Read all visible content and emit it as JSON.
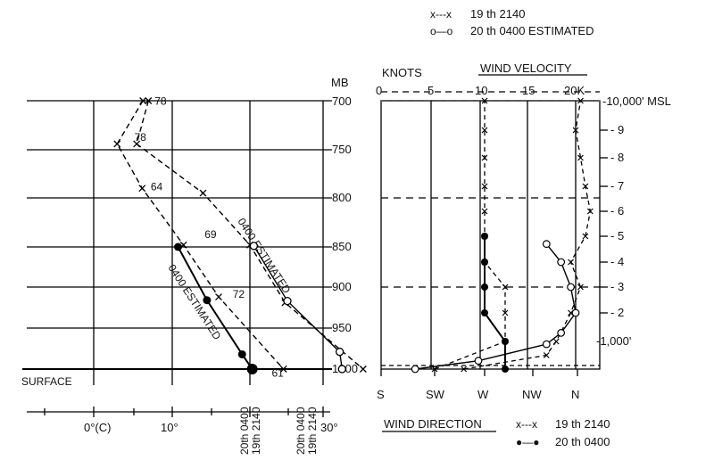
{
  "chart_data": [
    {
      "type": "line",
      "panel": "temperature-pressure",
      "y_unit": "MB",
      "y_ticks": [
        700,
        750,
        800,
        850,
        900,
        950,
        1000
      ],
      "x_ticks": [
        "0°(C)",
        "10°",
        "30°"
      ],
      "surface_label": "SURFACE",
      "estimated_label": "0400 ESTIMATED",
      "series": [
        {
          "name": "19 th 2140",
          "style": "dashed-x",
          "points": [
            {
              "p": 700,
              "t": 6.3
            },
            {
              "p": 700,
              "t": 7.0
            },
            {
              "p": 744,
              "t": 3.0
            },
            {
              "p": 744,
              "t": 5.5
            },
            {
              "p": 790,
              "t": 6.2
            },
            {
              "p": 795,
              "t": 14.0
            },
            {
              "p": 848,
              "t": 11.5
            },
            {
              "p": 848,
              "t": 20.0
            },
            {
              "p": 912,
              "t": 16.0
            },
            {
              "p": 919,
              "t": 24.5
            },
            {
              "p": 1000,
              "t": 24.3
            },
            {
              "p": 1000,
              "t": 34.5
            }
          ]
        },
        {
          "name": "20 th 0400 ESTIMATED",
          "style": "open-circle",
          "points": [
            {
              "p": 849,
              "t": 20.5
            },
            {
              "p": 917,
              "t": 24.8
            },
            {
              "p": 979,
              "t": 31.5
            },
            {
              "p": 1000,
              "t": 31.8
            }
          ]
        },
        {
          "name": "20 th 0400",
          "style": "filled-circle",
          "points": [
            {
              "p": 850,
              "t": 10.8
            },
            {
              "p": 916,
              "t": 14.5
            },
            {
              "p": 982,
              "t": 19.0
            },
            {
              "p": 1000,
              "t": 20.3
            }
          ]
        }
      ],
      "point_labels": [
        {
          "text": "78",
          "p": 704,
          "t": 7.8
        },
        {
          "text": "78",
          "p": 741,
          "t": 5.2
        },
        {
          "text": "64",
          "p": 792,
          "t": 7.3
        },
        {
          "text": "69",
          "p": 841,
          "t": 14.2
        },
        {
          "text": "72",
          "p": 913,
          "t": 17.8
        },
        {
          "text": "61",
          "p": 1009,
          "t": 22.8
        }
      ],
      "bottom_markers": [
        "20th 0400",
        "19th 2140",
        "20th 0400",
        "19th 2140"
      ]
    },
    {
      "type": "line",
      "panel": "wind-velocity",
      "title": "WIND VELOCITY",
      "x_unit": "KNOTS",
      "x_ticks": [
        "0",
        "5",
        "10",
        "15",
        "20K"
      ],
      "x_range": [
        0,
        20
      ],
      "altitude_ticks": [
        "-10,000' MSL",
        "- 9",
        "- 8",
        "- 7",
        "- 6",
        "- 5",
        "- 4",
        "- 3",
        "- 2",
        "-1,000'"
      ],
      "series": [
        {
          "name": "19 th 2140",
          "style": "dashed-x",
          "points": [
            {
              "alt": 0,
              "k": 8.5
            },
            {
              "alt": 0.5,
              "k": 17.0
            },
            {
              "alt": 1.0,
              "k": 18.0
            },
            {
              "alt": 2.0,
              "k": 19.5
            },
            {
              "alt": 3.0,
              "k": 20.5
            },
            {
              "alt": 4.0,
              "k": 19.5
            },
            {
              "alt": 5.0,
              "k": 21.0
            },
            {
              "alt": 6.0,
              "k": 21.5
            },
            {
              "alt": 7.0,
              "k": 21.0
            },
            {
              "alt": 8.0,
              "k": 20.5
            },
            {
              "alt": 9.0,
              "k": 20.0
            },
            {
              "alt": 10.0,
              "k": 20.5
            }
          ]
        },
        {
          "name": "20th 0400",
          "style": "open-circle",
          "points": [
            {
              "alt": 0,
              "k": 3.5
            },
            {
              "alt": 0.3,
              "k": 10.0
            },
            {
              "alt": 0.9,
              "k": 17.0
            },
            {
              "alt": 1.3,
              "k": 18.5
            },
            {
              "alt": 2.0,
              "k": 20.0
            },
            {
              "alt": 3.0,
              "k": 19.5
            },
            {
              "alt": 4.0,
              "k": 18.5
            },
            {
              "alt": 4.7,
              "k": 17.0
            }
          ]
        }
      ]
    },
    {
      "type": "line",
      "panel": "wind-direction",
      "title": "WIND DIRECTION",
      "x_ticks": [
        "S",
        "SW",
        "W",
        "NW",
        "N"
      ],
      "series": [
        {
          "name": "19 th 2140",
          "style": "dashed-x",
          "points": [
            {
              "alt": 0,
              "d": "SW"
            },
            {
              "alt": 1.0,
              "d": "W-NW"
            },
            {
              "alt": 2.0,
              "d": "W-NW"
            },
            {
              "alt": 3.0,
              "d": "W-NW"
            },
            {
              "alt": 4.0,
              "d": "W"
            },
            {
              "alt": 5.0,
              "d": "W"
            },
            {
              "alt": 6.0,
              "d": "W"
            },
            {
              "alt": 7.0,
              "d": "W"
            },
            {
              "alt": 8.0,
              "d": "W"
            },
            {
              "alt": 9.0,
              "d": "W"
            },
            {
              "alt": 10.0,
              "d": "W"
            }
          ]
        },
        {
          "name": "20th 0400",
          "style": "filled-circle",
          "points": [
            {
              "alt": 0,
              "d": "W-NW"
            },
            {
              "alt": 1.0,
              "d": "W-NW"
            },
            {
              "alt": 2.0,
              "d": "W"
            },
            {
              "alt": 3.0,
              "d": "W"
            },
            {
              "alt": 4.0,
              "d": "W"
            },
            {
              "alt": 5.0,
              "d": "W"
            }
          ]
        }
      ]
    }
  ],
  "legend_top": [
    {
      "text": "19 th  2140",
      "marker": "x---x"
    },
    {
      "text": "20 th  0400  ESTIMATED",
      "marker": "o—o"
    }
  ],
  "legend_bottom": [
    {
      "text": "19 th  2140",
      "marker": "x---x"
    },
    {
      "text": "20 th  0400",
      "marker": "●—●"
    }
  ]
}
